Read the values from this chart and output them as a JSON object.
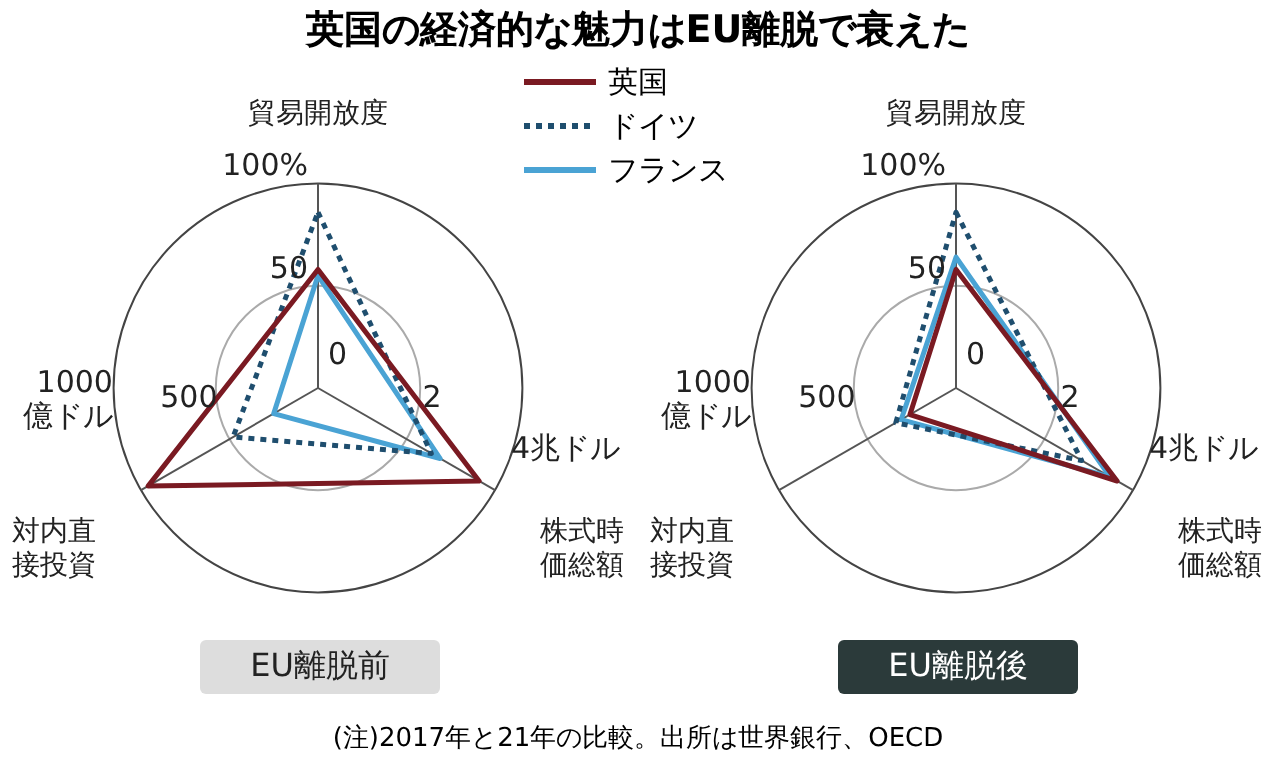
{
  "chart_data": [
    {
      "type": "radar",
      "title": "英国の経済的な魅力はEU離脱で衰えた",
      "categories": [
        "貿易開放度",
        "株式時価総額",
        "対内直接投資"
      ],
      "ylim": [
        0,
        100
      ],
      "yticks": [
        {
          "value": 0,
          "label": "0"
        },
        {
          "value": 50,
          "label": "50"
        },
        {
          "value": 100,
          "label": "100%"
        }
      ],
      "grid": true,
      "legend": "top right",
      "series": [
        {
          "name": "英国",
          "color": "#7a1a22",
          "values": [
            58,
            91,
            96
          ]
        },
        {
          "name": "ドイツ",
          "color": "#1f4e6e",
          "values": [
            86,
            64,
            48
          ],
          "line_style": "dotted"
        },
        {
          "name": "フランス",
          "color": "#4aa3d4",
          "values": [
            55,
            69,
            25
          ]
        }
      ],
      "annotations": [
        "2",
        "4兆ドル",
        "500",
        "1000億ドル",
        "EU離脱前"
      ]
    },
    {
      "type": "radar",
      "categories": [
        "貿易開放度",
        "株式時価総額",
        "対内直接投資"
      ],
      "ylim": [
        0,
        100
      ],
      "yticks": [
        {
          "value": 0,
          "label": "0"
        },
        {
          "value": 50,
          "label": "50"
        },
        {
          "value": 100,
          "label": "100%"
        }
      ],
      "grid": true,
      "series": [
        {
          "color": "#7a1a22",
          "values": [
            58,
            91,
            26
          ]
        },
        {
          "color": "#1f4e6e",
          "values": [
            86,
            71,
            34
          ],
          "line_style": "dotted"
        },
        {
          "color": "#4aa3d4",
          "values": [
            64,
            87,
            31
          ]
        }
      ],
      "annotations": [
        "2",
        "4兆ドル",
        "500",
        "1000億ドル",
        "EU離脱後",
        "(注)2017年と21年の比較。出所は世界銀行、OECD"
      ]
    }
  ]
}
